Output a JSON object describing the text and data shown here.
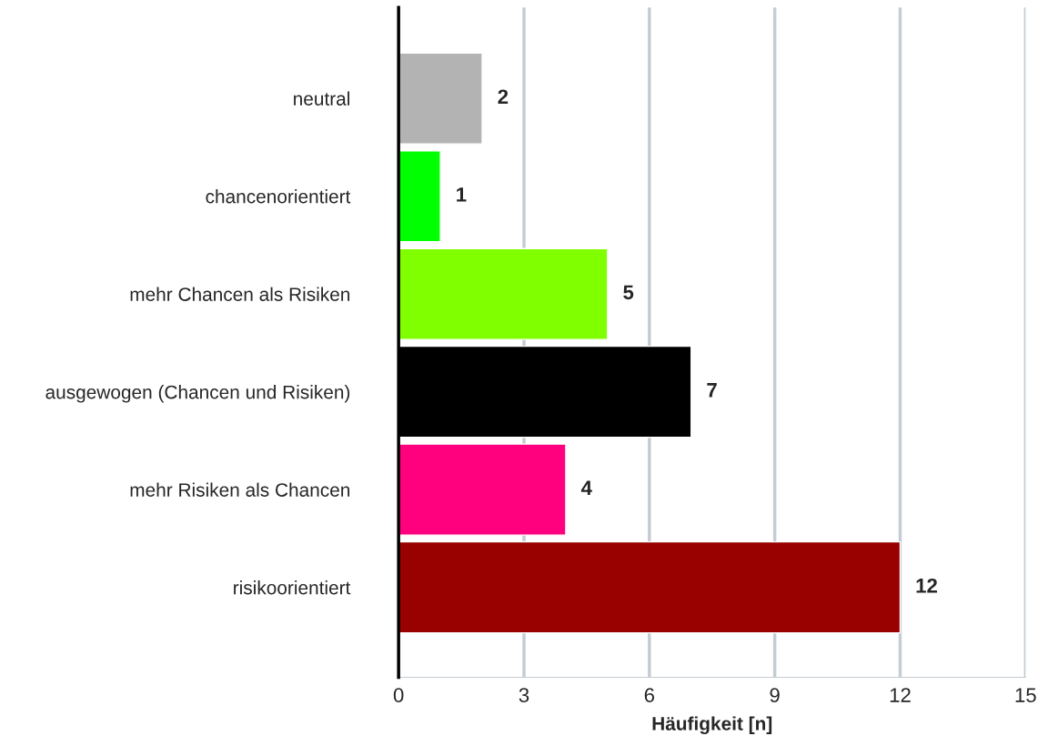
{
  "chart_data": {
    "type": "bar",
    "orientation": "horizontal",
    "xlabel": "Häufigkeit [n]",
    "categories": [
      "neutral",
      "chancenorientiert",
      "mehr Chancen als Risiken",
      "ausgewogen (Chancen und Risiken)",
      "mehr Risiken als Chancen",
      "risikoorientiert"
    ],
    "values": [
      2,
      1,
      5,
      7,
      4,
      12
    ],
    "colors": [
      "#b3b3b3",
      "#00ff00",
      "#80ff00",
      "#000000",
      "#ff007f",
      "#990000"
    ],
    "xlim": [
      0,
      15
    ],
    "xticks": [
      0,
      3,
      6,
      9,
      12,
      15
    ],
    "grid": "x",
    "data_labels": true
  }
}
